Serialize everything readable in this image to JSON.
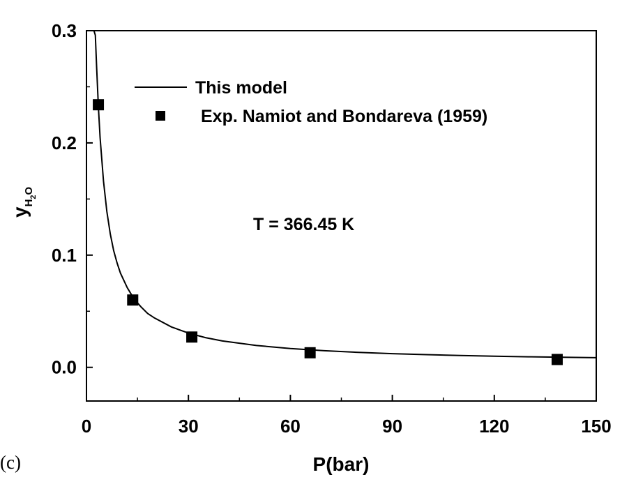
{
  "chart_data": {
    "type": "line",
    "panel_label": "(c)",
    "xlabel": "P(bar)",
    "ylabel": {
      "main": "y",
      "subscript": "H",
      "sub_digit": "2",
      "sub_tail": "O"
    },
    "xlim": [
      0,
      150
    ],
    "ylim": [
      -0.03,
      0.3
    ],
    "xticks": [
      0,
      30,
      60,
      90,
      120,
      150
    ],
    "xtick_labels": [
      "0",
      "30",
      "60",
      "90",
      "120",
      "150"
    ],
    "yticks": [
      0.0,
      0.1,
      0.2,
      0.3
    ],
    "ytick_labels": [
      "0.0",
      "0.1",
      "0.2",
      "0.3"
    ],
    "grid": false,
    "legend_position": "top-left",
    "annotation": "T = 366.45 K",
    "series": [
      {
        "name": "This model",
        "kind": "line",
        "x": [
          1.85,
          2.2,
          2.6,
          3.0,
          3.5,
          4.0,
          5.0,
          6.0,
          7.0,
          8.0,
          9.0,
          10.0,
          12.0,
          14.0,
          16.0,
          18.0,
          20.0,
          25.0,
          30.0,
          35.0,
          40.0,
          50.0,
          60.0,
          70.0,
          80.0,
          90.0,
          100.0,
          110.0,
          120.0,
          130.0,
          140.0,
          150.0
        ],
        "y": [
          0.3,
          0.3,
          0.296,
          0.267,
          0.232,
          0.205,
          0.166,
          0.139,
          0.119,
          0.104,
          0.093,
          0.084,
          0.071,
          0.061,
          0.054,
          0.048,
          0.044,
          0.036,
          0.0305,
          0.0265,
          0.0235,
          0.0195,
          0.0168,
          0.0148,
          0.0133,
          0.0122,
          0.0113,
          0.0105,
          0.0099,
          0.0094,
          0.009,
          0.0086
        ]
      },
      {
        "name": "Exp. Namiot and Bondareva (1959)",
        "kind": "scatter",
        "x": [
          3.5,
          13.6,
          31.0,
          65.8,
          138.5
        ],
        "y": [
          0.234,
          0.06,
          0.027,
          0.013,
          0.007
        ]
      }
    ]
  }
}
